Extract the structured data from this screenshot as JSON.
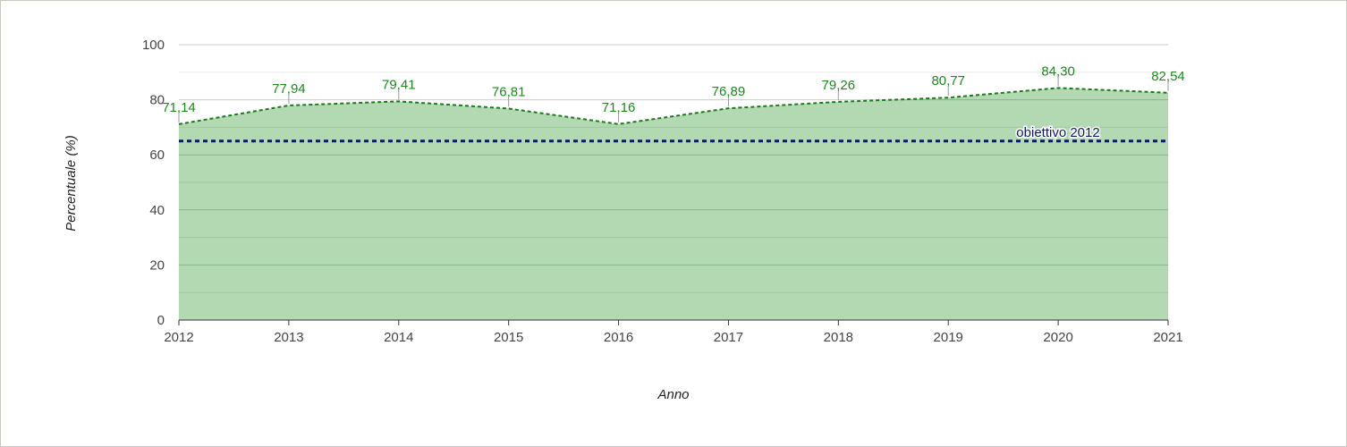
{
  "chart_data": {
    "type": "area",
    "x": [
      "2012",
      "2013",
      "2014",
      "2015",
      "2016",
      "2017",
      "2018",
      "2019",
      "2020",
      "2021"
    ],
    "values": [
      71.14,
      77.94,
      79.41,
      76.81,
      71.16,
      76.89,
      79.26,
      80.77,
      84.3,
      82.54
    ],
    "data_labels": [
      "71,14",
      "77,94",
      "79,41",
      "76,81",
      "71,16",
      "76,89",
      "79,26",
      "80,77",
      "84,30",
      "82,54"
    ],
    "ylim": [
      0,
      100
    ],
    "yticks": [
      0,
      20,
      40,
      60,
      80,
      100
    ],
    "ytick_labels": [
      "0",
      "20",
      "40",
      "60",
      "80",
      "100"
    ],
    "xlabel": "Anno",
    "ylabel": "Percentuale (%)",
    "grid": true,
    "target": {
      "value": 65,
      "label": "obiettivo 2012"
    },
    "colors": {
      "area_fill": "#b3d9b3",
      "line": "#1a7a1a",
      "data_label": "#1a8a1a",
      "target_line": "#0a1a5c",
      "grid": "#cccccc"
    }
  }
}
